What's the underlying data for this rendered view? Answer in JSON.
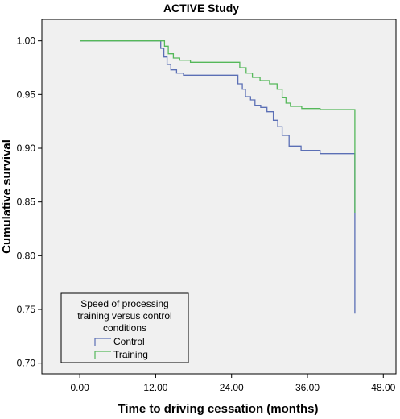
{
  "chart_data": {
    "type": "line",
    "title": "ACTIVE Study",
    "xlabel": "Time to driving cessation (months)",
    "ylabel": "Cumulative survival",
    "xlim": [
      -6,
      50
    ],
    "ylim": [
      0.69,
      1.02
    ],
    "xticks": [
      0,
      12,
      24,
      36,
      48
    ],
    "xtick_labels": [
      "0.00",
      "12.00",
      "24.00",
      "36.00",
      "48.00"
    ],
    "yticks": [
      0.7,
      0.75,
      0.8,
      0.85,
      0.9,
      0.95,
      1.0
    ],
    "ytick_labels": [
      "0.70",
      "0.75",
      "0.80",
      "0.85",
      "0.90",
      "0.95",
      "1.00"
    ],
    "grid": false,
    "background": "#f0f0f0",
    "legend": {
      "title": "Speed of processing training versus control conditions",
      "title_lines": [
        "Speed of processing",
        "training versus  control",
        "conditions"
      ],
      "placement": "bottom-left"
    },
    "series": [
      {
        "name": "Control",
        "color": "#5b6fb5",
        "step": true,
        "x": [
          0,
          12.8,
          13.3,
          13.8,
          14.4,
          15.3,
          16.4,
          25.0,
          25.7,
          26.2,
          27.0,
          27.7,
          28.6,
          29.6,
          30.6,
          31.3,
          32.0,
          33.1,
          35.0,
          38.0,
          43.5,
          43.5
        ],
        "y": [
          1.0,
          0.993,
          0.985,
          0.978,
          0.973,
          0.97,
          0.968,
          0.96,
          0.955,
          0.948,
          0.945,
          0.94,
          0.938,
          0.934,
          0.926,
          0.92,
          0.912,
          0.902,
          0.898,
          0.895,
          0.895,
          0.746
        ]
      },
      {
        "name": "Training",
        "color": "#55b85a",
        "step": true,
        "x": [
          0,
          13.4,
          14.0,
          14.8,
          15.8,
          17.5,
          25.3,
          26.3,
          27.3,
          28.5,
          30.0,
          31.2,
          32.0,
          32.6,
          33.3,
          35.1,
          38.0,
          43.5,
          43.5
        ],
        "y": [
          1.0,
          0.995,
          0.988,
          0.984,
          0.982,
          0.98,
          0.975,
          0.97,
          0.966,
          0.963,
          0.96,
          0.955,
          0.947,
          0.942,
          0.939,
          0.937,
          0.936,
          0.936,
          0.84
        ]
      }
    ]
  }
}
